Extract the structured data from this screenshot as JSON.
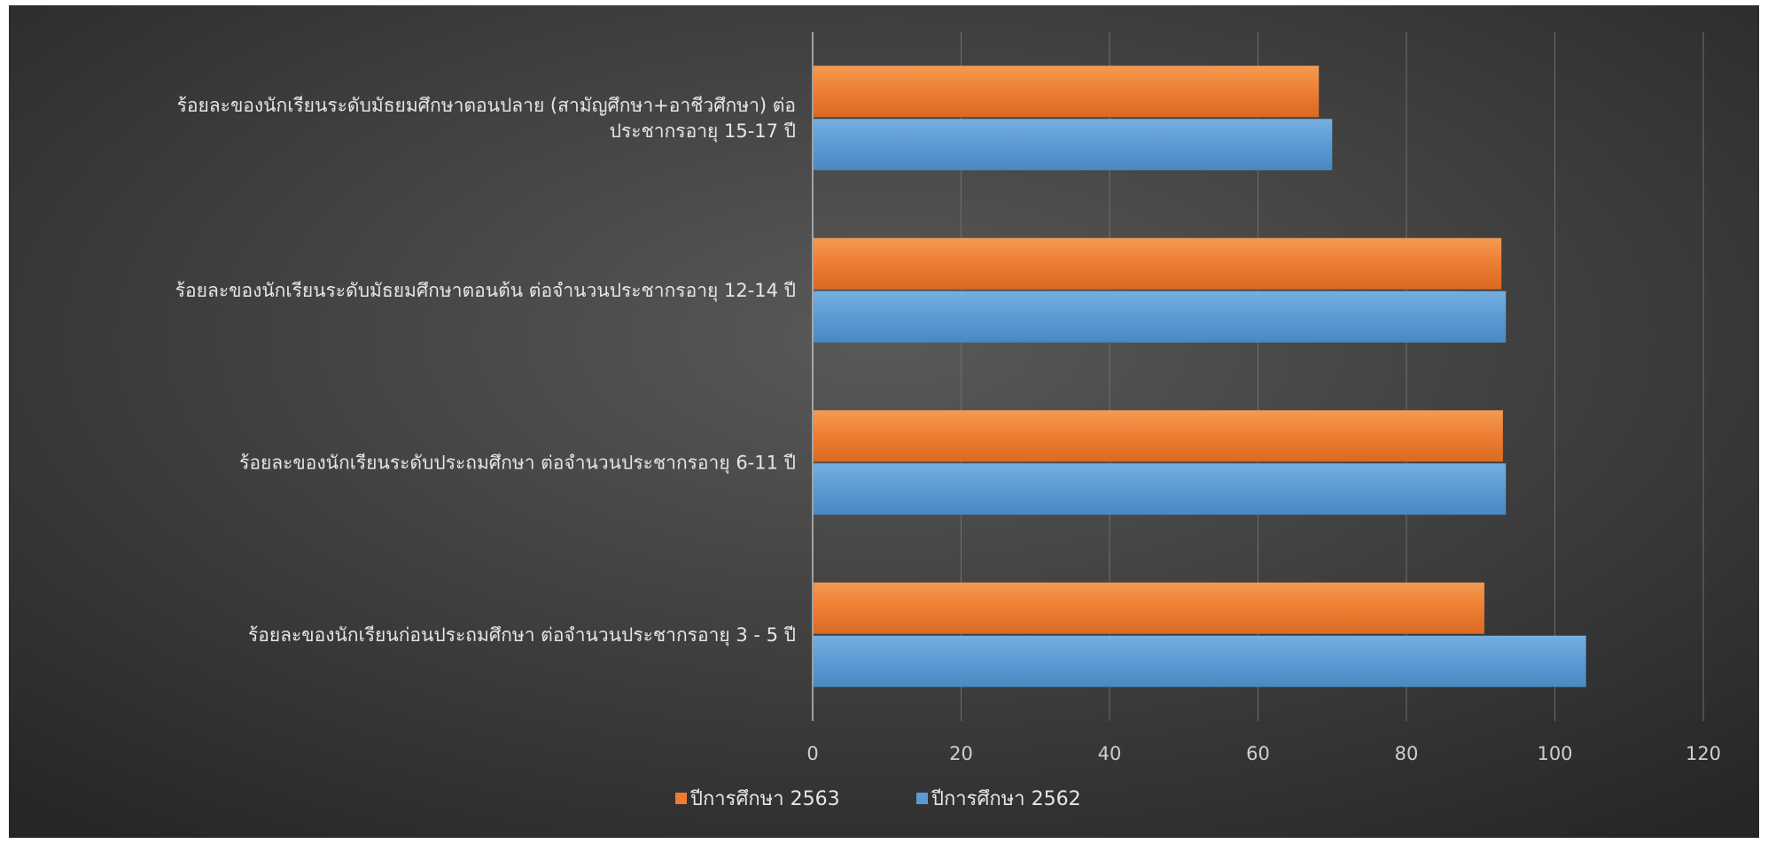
{
  "chart_data": {
    "type": "bar",
    "orientation": "horizontal",
    "title": "",
    "xlabel": "",
    "ylabel": "",
    "xlim": [
      0,
      120
    ],
    "x_ticks": [
      "0",
      "20",
      "40",
      "60",
      "80",
      "100",
      "120"
    ],
    "grid": true,
    "legend_position": "bottom",
    "categories": [
      [
        "ร้อยละของนักเรียนระดับมัธยมศึกษาตอนปลาย (สามัญศึกษา+อาชีวศึกษา) ต่อ",
        "ประชากรอายุ 15-17 ปี"
      ],
      [
        "ร้อยละของนักเรียนระดับมัธยมศึกษาตอนต้น ต่อจำนวนประชากรอายุ 12-14 ปี"
      ],
      [
        "ร้อยละของนักเรียนระดับประถมศึกษา ต่อจำนวนประชากรอายุ 6-11 ปี"
      ],
      [
        "ร้อยละของนักเรียนก่อนประถมศึกษา ต่อจำนวนประชากรอายุ 3 - 5 ปี"
      ]
    ],
    "series": [
      {
        "name": "ปีการศึกษา 2563",
        "color": "#ED7D31",
        "values": [
          68.2,
          92.8,
          93.0,
          90.5
        ]
      },
      {
        "name": "ปีการศึกษา 2562",
        "color": "#5B9BD5",
        "values": [
          70.0,
          93.4,
          93.4,
          104.2
        ]
      }
    ]
  }
}
